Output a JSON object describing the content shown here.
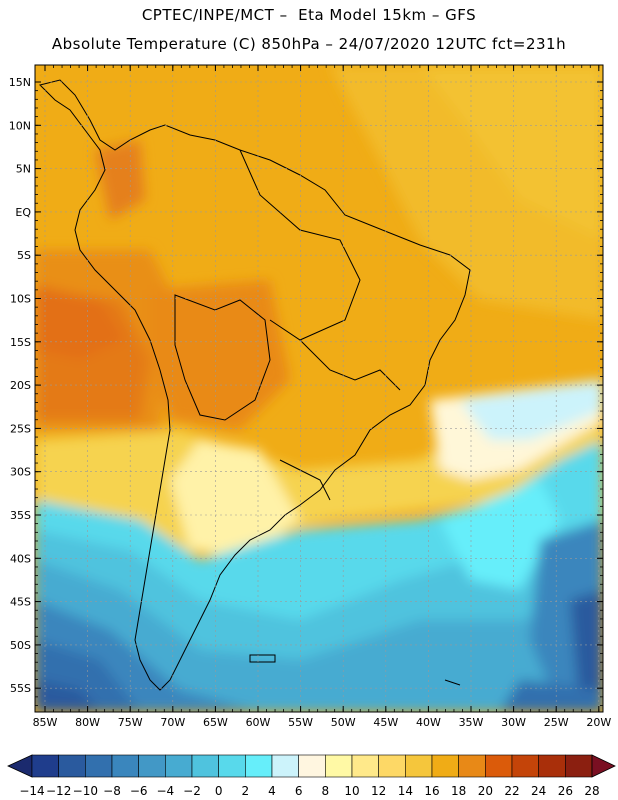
{
  "header": {
    "title_line1": "CPTEC/INPE/MCT –  Eta Model 15km – GFS",
    "title_line2": "Absolute Temperature (C) 850hPa – 24/07/2020 12UTC fct=231h"
  },
  "map": {
    "lat_labels": [
      "15N",
      "10N",
      "5N",
      "EQ",
      "5S",
      "10S",
      "15S",
      "20S",
      "25S",
      "30S",
      "35S",
      "40S",
      "45S",
      "50S",
      "55S"
    ],
    "lon_labels": [
      "85W",
      "80W",
      "75W",
      "70W",
      "65W",
      "60W",
      "55W",
      "50W",
      "45W",
      "40W",
      "35W",
      "30W",
      "25W",
      "20W"
    ]
  },
  "colorbar": {
    "labels": [
      "-14",
      "-12",
      "-10",
      "-8",
      "-6",
      "-4",
      "-2",
      "0",
      "2",
      "4",
      "6",
      "8",
      "10",
      "12",
      "14",
      "16",
      "18",
      "20",
      "22",
      "24",
      "26",
      "28"
    ],
    "colors": [
      "#1f3d8c",
      "#2a5a9e",
      "#3270ae",
      "#3a86bd",
      "#4298c6",
      "#47abd1",
      "#4fc3de",
      "#58d9eb",
      "#66eefa",
      "#ccf3fb",
      "#fff6e0",
      "#fff9a5",
      "#ffe98a",
      "#fdd866",
      "#f5c63c",
      "#f0ac16",
      "#e88917",
      "#db5b0a",
      "#c44409",
      "#a92f0a",
      "#8b1f10"
    ],
    "under_color": "#1b2a6e",
    "over_color": "#7a0f22"
  }
}
